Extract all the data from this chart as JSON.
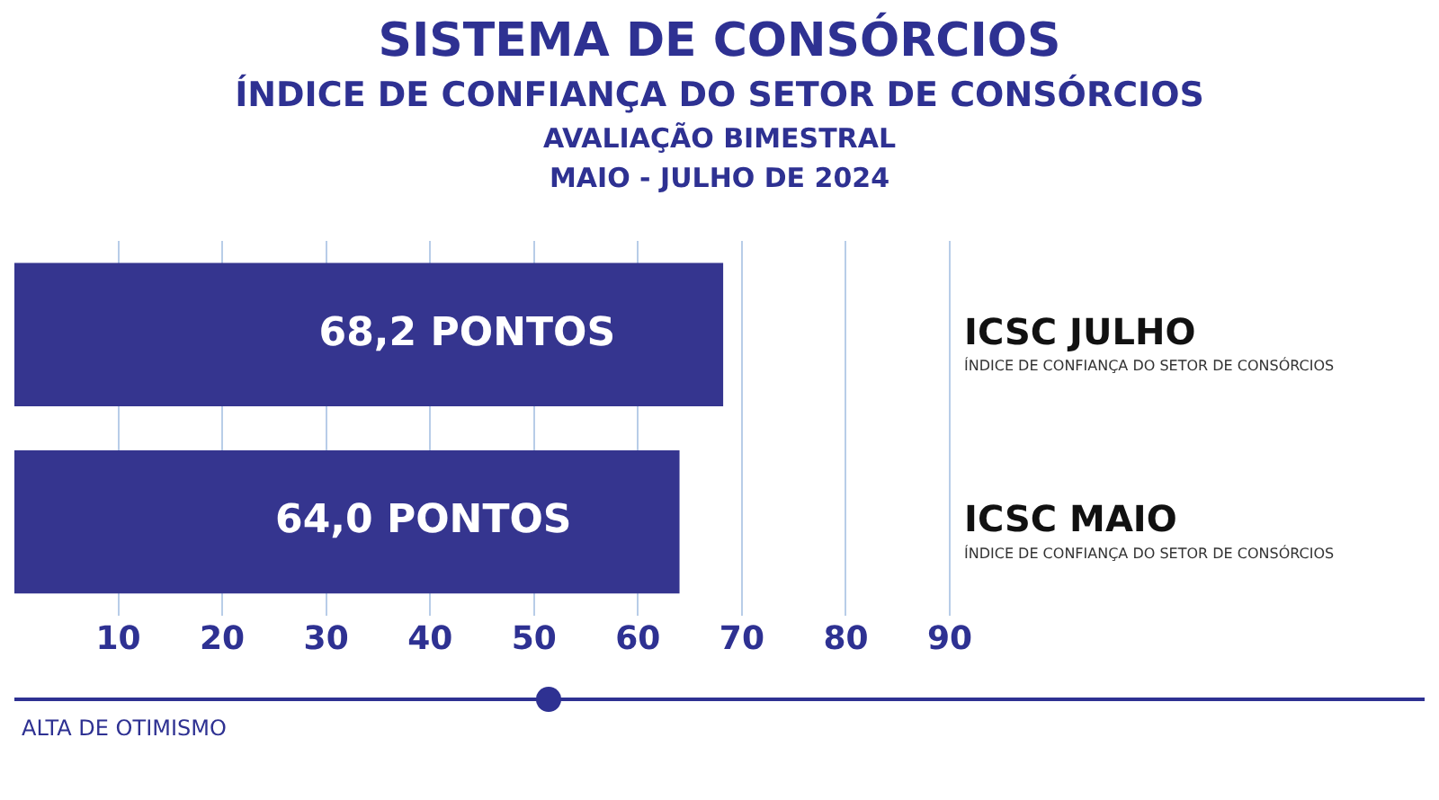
{
  "chart_data": {
    "type": "bar",
    "orientation": "horizontal",
    "title": "SISTEMA DE CONSÓRCIOS",
    "subtitle": "ÍNDICE DE CONFIANÇA DO SETOR DE CONSÓRCIOS\nAVALIAÇÃO BIMESTRAL\nMAIO - JULHO DE 2024",
    "categories": [
      "ICSC JULHO",
      "ICSC MAIO"
    ],
    "values": [
      68.2,
      64.0
    ],
    "color": "#35358f",
    "value_labels": [
      "68,2 PONTOS",
      "64,0 PONTOS"
    ],
    "xlim": [
      0,
      90
    ],
    "xticks": [
      10,
      20,
      30,
      40,
      50,
      60,
      70,
      80,
      90
    ],
    "grid": "x",
    "annotations": [
      "ÍNDICE DE CONFIANÇA DO SETOR DE CONSÓRCIOS",
      "ÍNDICE DE CONFIANÇA DO SETOR DE CONSÓRCIOS",
      "ALTA DE OTIMISMO"
    ]
  }
}
